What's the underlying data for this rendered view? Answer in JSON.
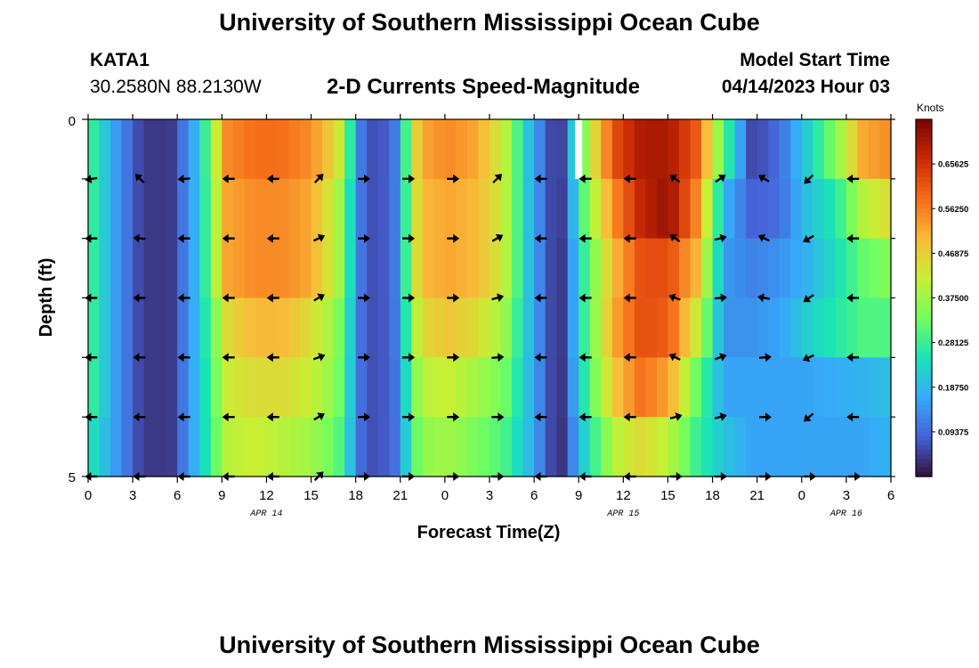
{
  "header": {
    "title": "University of Southern Mississippi Ocean Cube",
    "station": "KATA1",
    "coords": "30.2580N  88.2130W",
    "plot_title": "2-D Currents Speed-Magnitude",
    "model_label": "Model Start Time",
    "model_time": "04/14/2023 Hour 03"
  },
  "footer": {
    "title": "University of Southern Mississippi Ocean Cube"
  },
  "chart_data": {
    "type": "heatmap",
    "title": "2-D Currents Speed-Magnitude",
    "xlabel": "Forecast Time(Z)",
    "ylabel": "Depth (ft)",
    "x_ticks": [
      "0",
      "3",
      "6",
      "9",
      "12",
      "15",
      "18",
      "21",
      "0",
      "3",
      "6",
      "9",
      "12",
      "15",
      "18",
      "21",
      "0",
      "3",
      "6"
    ],
    "x_range_hours": [
      0,
      54
    ],
    "y_ticks": [
      "0",
      "5"
    ],
    "y_range_ft": [
      0,
      5
    ],
    "dates": [
      {
        "label": "APR 14",
        "hour": 12
      },
      {
        "label": "APR 15",
        "hour": 36
      },
      {
        "label": "APR 16",
        "hour": 51
      }
    ],
    "colorbar": {
      "unit": "Knots",
      "min": 0.0,
      "max": 0.75,
      "tick_labels": [
        "0.65625",
        "0.56250",
        "0.46875",
        "0.37500",
        "0.28125",
        "0.18750",
        "0.09375"
      ],
      "tick_values": [
        0.65625,
        0.5625,
        0.46875,
        0.375,
        0.28125,
        0.1875,
        0.09375
      ],
      "colors": [
        "#30123b",
        "#4662d7",
        "#36aaf9",
        "#1ae4b6",
        "#72fe5e",
        "#c8ef34",
        "#faba39",
        "#f66b19",
        "#ca2a04",
        "#7a0403"
      ]
    },
    "speed_knots": [
      [
        0.3,
        0.15,
        0.04,
        0.04,
        0.2,
        0.55,
        0.58,
        0.58,
        0.55,
        0.45,
        0.06,
        0.08,
        0.52,
        0.55,
        0.52,
        0.42,
        0.18,
        0.01,
        0.38,
        0.62,
        0.7,
        0.7,
        0.6,
        0.3,
        0.05,
        0.1,
        0.22,
        0.35,
        0.52,
        0.55
      ],
      [
        0.3,
        0.15,
        0.04,
        0.04,
        0.2,
        0.52,
        0.55,
        0.55,
        0.52,
        0.4,
        0.06,
        0.08,
        0.5,
        0.52,
        0.5,
        0.42,
        0.18,
        0.01,
        0.34,
        0.55,
        0.68,
        0.72,
        0.55,
        0.18,
        0.08,
        0.1,
        0.2,
        0.26,
        0.4,
        0.45
      ],
      [
        0.3,
        0.15,
        0.04,
        0.04,
        0.2,
        0.52,
        0.55,
        0.55,
        0.52,
        0.4,
        0.06,
        0.08,
        0.5,
        0.52,
        0.5,
        0.42,
        0.18,
        0.01,
        0.3,
        0.5,
        0.62,
        0.62,
        0.5,
        0.15,
        0.12,
        0.14,
        0.18,
        0.24,
        0.32,
        0.35
      ],
      [
        0.3,
        0.15,
        0.04,
        0.04,
        0.2,
        0.45,
        0.5,
        0.5,
        0.45,
        0.36,
        0.06,
        0.08,
        0.45,
        0.48,
        0.45,
        0.38,
        0.18,
        0.01,
        0.3,
        0.52,
        0.62,
        0.6,
        0.42,
        0.14,
        0.14,
        0.16,
        0.22,
        0.26,
        0.3,
        0.3
      ],
      [
        0.3,
        0.15,
        0.04,
        0.04,
        0.2,
        0.42,
        0.45,
        0.45,
        0.42,
        0.35,
        0.06,
        0.08,
        0.4,
        0.42,
        0.38,
        0.34,
        0.18,
        0.01,
        0.28,
        0.48,
        0.58,
        0.52,
        0.32,
        0.16,
        0.16,
        0.16,
        0.16,
        0.17,
        0.18,
        0.2
      ],
      [
        0.26,
        0.15,
        0.04,
        0.04,
        0.2,
        0.4,
        0.42,
        0.4,
        0.38,
        0.32,
        0.06,
        0.08,
        0.36,
        0.38,
        0.34,
        0.3,
        0.18,
        0.01,
        0.24,
        0.4,
        0.45,
        0.4,
        0.28,
        0.2,
        0.16,
        0.16,
        0.16,
        0.16,
        0.16,
        0.18
      ]
    ],
    "arrow_hours": [
      0,
      3,
      6,
      9,
      12,
      15,
      18,
      21,
      24,
      27,
      30,
      33,
      36,
      39,
      42,
      45,
      48,
      51
    ],
    "arrow_rows": [
      1,
      2,
      3,
      4,
      5,
      6
    ],
    "arrow_dir_deg": [
      [
        190,
        135,
        185,
        180,
        180,
        45,
        0,
        0,
        0,
        45,
        180,
        180,
        180,
        145,
        35,
        150,
        225,
        180
      ],
      [
        180,
        175,
        180,
        180,
        180,
        25,
        0,
        0,
        0,
        30,
        180,
        180,
        180,
        145,
        15,
        155,
        210,
        180
      ],
      [
        180,
        180,
        180,
        180,
        180,
        30,
        0,
        0,
        0,
        15,
        180,
        180,
        180,
        160,
        5,
        170,
        215,
        180
      ],
      [
        180,
        180,
        180,
        180,
        180,
        20,
        0,
        0,
        0,
        5,
        180,
        180,
        180,
        155,
        20,
        5,
        205,
        180
      ],
      [
        180,
        180,
        180,
        180,
        180,
        30,
        0,
        0,
        0,
        0,
        180,
        180,
        180,
        15,
        15,
        0,
        220,
        180
      ],
      [
        180,
        180,
        180,
        180,
        180,
        45,
        0,
        0,
        0,
        0,
        180,
        180,
        180,
        0,
        0,
        0,
        0,
        0
      ]
    ],
    "missing_cell": {
      "hour": 33,
      "row": 0
    }
  }
}
